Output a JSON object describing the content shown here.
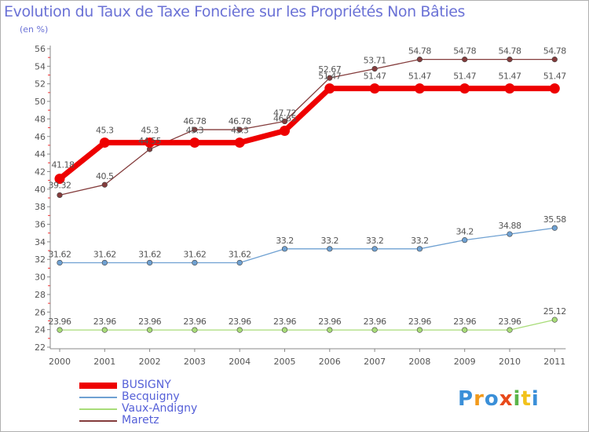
{
  "title": "Evolution du Taux de Taxe Foncière sur les Propriétés Non Bâties",
  "subtitle": "(en %)",
  "colors": {
    "BUSIGNY": "#ee0000",
    "Becquigny": "#6fa1d2",
    "Vaux-Andigny": "#a8dc78",
    "Maretz": "#843c3c",
    "axis_text": "#555555",
    "title": "#6b72d6"
  },
  "logo": {
    "letters": [
      "P",
      "r",
      "o",
      "x",
      "i",
      "t",
      "i"
    ],
    "colors": [
      "#3a8fd8",
      "#f29a1b",
      "#3a8fd8",
      "#e84a1b",
      "#5bb54a",
      "#f2c21b",
      "#3a8fd8"
    ]
  },
  "chart_data": {
    "type": "line",
    "x": [
      "2000",
      "2001",
      "2002",
      "2003",
      "2004",
      "2005",
      "2006",
      "2007",
      "2008",
      "2009",
      "2010",
      "2011"
    ],
    "ylim": [
      22,
      56
    ],
    "yticks": [
      "22",
      "24",
      "26",
      "28",
      "30",
      "32",
      "34",
      "36",
      "38",
      "40",
      "42",
      "44",
      "46",
      "48",
      "50",
      "52",
      "54",
      "56"
    ],
    "grid": false,
    "legend_position": "bottom-left",
    "series": [
      {
        "name": "BUSIGNY",
        "values": [
          41.18,
          45.3,
          45.3,
          45.3,
          45.3,
          46.65,
          51.47,
          51.47,
          51.47,
          51.47,
          51.47,
          51.47
        ],
        "labels": [
          "41.18",
          "45.3",
          "45.3",
          "45.3",
          "45.3",
          "46.65",
          "51.47",
          "51.47",
          "51.47",
          "51.47",
          "51.47",
          "51.47"
        ]
      },
      {
        "name": "Becquigny",
        "values": [
          31.62,
          31.62,
          31.62,
          31.62,
          31.62,
          33.2,
          33.2,
          33.2,
          33.2,
          34.2,
          34.88,
          35.58
        ],
        "labels": [
          "31.62",
          "31.62",
          "31.62",
          "31.62",
          "31.62",
          "33.2",
          "33.2",
          "33.2",
          "33.2",
          "34.2",
          "34.88",
          "35.58"
        ]
      },
      {
        "name": "Vaux-Andigny",
        "values": [
          23.96,
          23.96,
          23.96,
          23.96,
          23.96,
          23.96,
          23.96,
          23.96,
          23.96,
          23.96,
          23.96,
          25.12
        ],
        "labels": [
          "23.96",
          "23.96",
          "23.96",
          "23.96",
          "23.96",
          "23.96",
          "23.96",
          "23.96",
          "23.96",
          "23.96",
          "23.96",
          "25.12"
        ]
      },
      {
        "name": "Maretz",
        "values": [
          39.32,
          40.5,
          44.55,
          46.78,
          46.78,
          47.72,
          52.67,
          53.71,
          54.78,
          54.78,
          54.78,
          54.78
        ],
        "labels": [
          "39.32",
          "40.5",
          "44.55",
          "46.78",
          "46.78",
          "47.72",
          "52.67",
          "53.71",
          "54.78",
          "54.78",
          "54.78",
          "54.78"
        ]
      }
    ]
  }
}
